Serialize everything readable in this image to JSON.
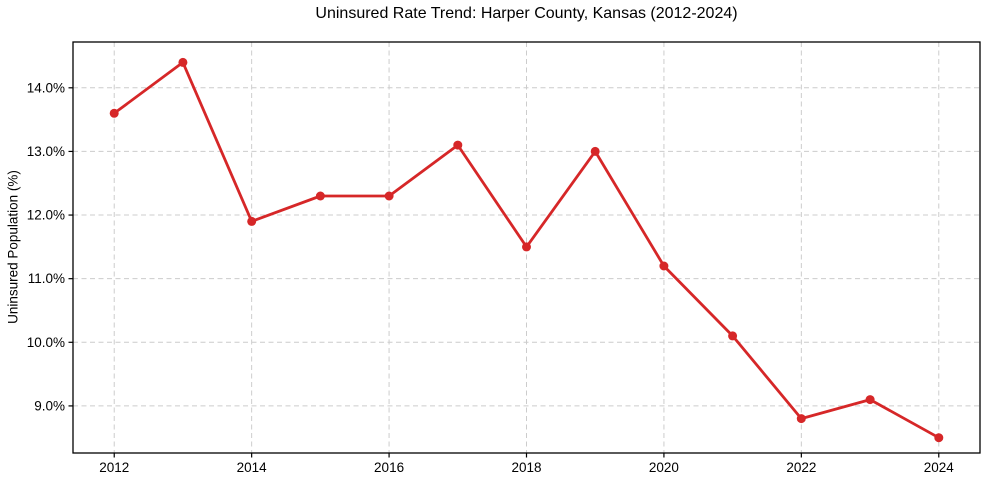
{
  "chart_data": {
    "type": "line",
    "title": "Uninsured Rate Trend: Harper County, Kansas (2012-2024)",
    "ylabel": "Uninsured Population (%)",
    "xlabel": "",
    "x": [
      2012,
      2013,
      2014,
      2015,
      2016,
      2017,
      2018,
      2019,
      2020,
      2021,
      2022,
      2023,
      2024
    ],
    "values": [
      13.6,
      14.4,
      11.9,
      12.3,
      12.3,
      13.1,
      11.5,
      13.0,
      11.2,
      10.1,
      8.8,
      9.1,
      8.5
    ],
    "xtick_values": [
      2012,
      2014,
      2016,
      2018,
      2020,
      2022,
      2024
    ],
    "xtick_labels": [
      "2012",
      "2014",
      "2016",
      "2018",
      "2020",
      "2022",
      "2024"
    ],
    "ytick_values": [
      9,
      10,
      11,
      12,
      13,
      14
    ],
    "ytick_labels": [
      "9.0%",
      "10.0%",
      "11.0%",
      "12.0%",
      "13.0%",
      "14.0%"
    ],
    "xlim": [
      2011.4,
      2024.6
    ],
    "ylim": [
      8.26,
      14.72
    ],
    "grid": true,
    "legend_position": "none",
    "colors": {
      "line": "#d62728",
      "marker": "#d62728",
      "grid": "#cccccc",
      "axis": "#000000",
      "text": "#000000",
      "background": "#ffffff"
    }
  }
}
